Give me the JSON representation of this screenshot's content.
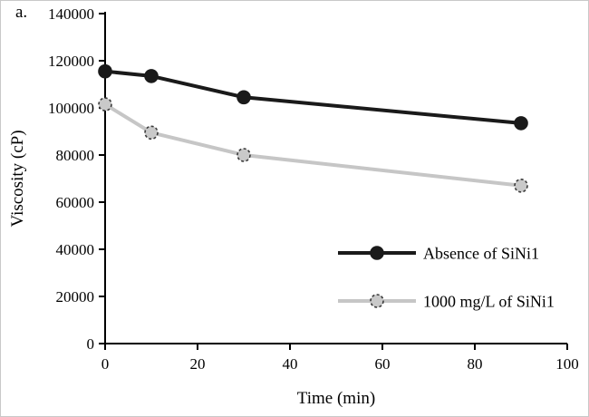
{
  "panel_label": "a.",
  "chart_data": {
    "type": "line",
    "x": [
      0,
      10,
      30,
      90
    ],
    "series": [
      {
        "name": "Absence of SiNi1",
        "values": [
          115500,
          113500,
          104500,
          93500
        ],
        "color": "#1a1a1a",
        "marker": "filled-circle",
        "marker_fill": "#1a1a1a",
        "marker_stroke": "#1a1a1a"
      },
      {
        "name": "1000 mg/L of SiNi1",
        "values": [
          101500,
          89500,
          80000,
          67000
        ],
        "color": "#c6c6c6",
        "marker": "dashed-outline-circle",
        "marker_fill": "#c9c9c9",
        "marker_stroke": "#3a3a3a"
      }
    ],
    "title": "",
    "xlabel": "Time (min)",
    "ylabel": "Viscosity (cP)",
    "xlim": [
      0,
      100
    ],
    "ylim": [
      0,
      140000
    ],
    "x_ticks": [
      0,
      20,
      40,
      60,
      80,
      100
    ],
    "y_ticks": [
      0,
      20000,
      40000,
      60000,
      80000,
      100000,
      120000,
      140000
    ],
    "grid": false,
    "legend_position": "inside-lower-right",
    "axis_color": "#000000"
  }
}
